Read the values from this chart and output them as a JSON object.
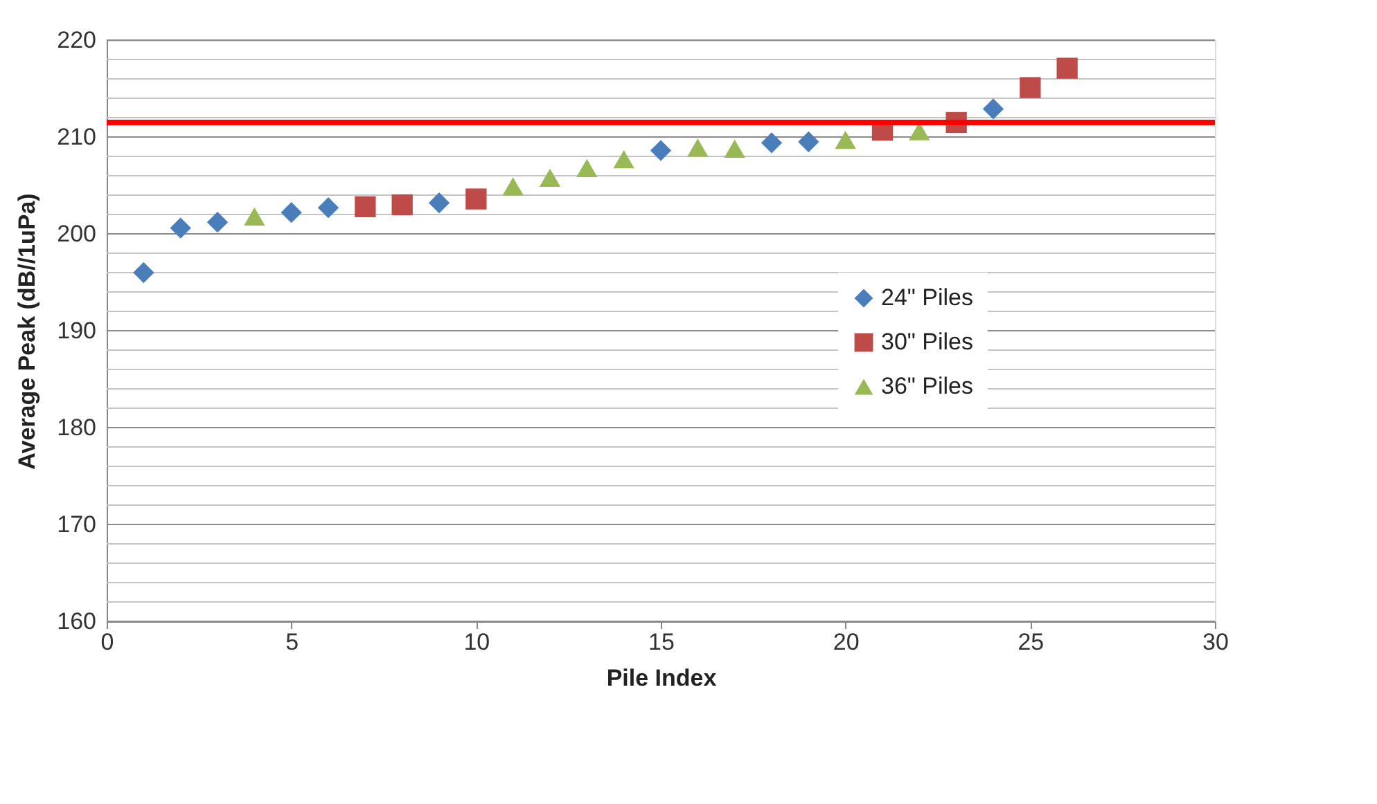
{
  "chart_data": {
    "type": "scatter",
    "xlabel": "Pile Index",
    "ylabel": "Average Peak (dB//1uPa)",
    "xlim": [
      0,
      30
    ],
    "xticks": [
      0,
      5,
      10,
      15,
      20,
      25,
      30
    ],
    "ylim": [
      160,
      220
    ],
    "yticks": [
      160,
      {
        "value": 162,
        "label": null
      },
      {
        "value": 164,
        "label": null
      },
      {
        "value": 166,
        "label": null
      },
      {
        "value": 168,
        "label": null
      },
      170,
      {
        "value": 172,
        "label": null
      },
      {
        "value": 174,
        "label": null
      },
      {
        "value": 176,
        "label": null
      },
      {
        "value": 178,
        "label": null
      },
      180,
      {
        "value": 182,
        "label": null
      },
      {
        "value": 184,
        "label": null
      },
      {
        "value": 186,
        "label": null
      },
      {
        "value": 188,
        "label": null
      },
      190,
      {
        "value": 192,
        "label": null
      },
      {
        "value": 194,
        "label": null
      },
      {
        "value": 196,
        "label": null
      },
      {
        "value": 198,
        "label": null
      },
      200,
      {
        "value": 202,
        "label": null
      },
      {
        "value": 204,
        "label": null
      },
      {
        "value": 206,
        "label": null
      },
      {
        "value": 208,
        "label": null
      },
      210,
      {
        "value": 212,
        "label": null
      },
      {
        "value": 214,
        "label": null
      },
      {
        "value": 216,
        "label": null
      },
      {
        "value": 218,
        "label": null
      },
      220
    ],
    "grid": "y",
    "legend": "right",
    "series": [
      {
        "name": "24\" Piles",
        "color": "#4a7ebb",
        "marker": "diamond",
        "x": [
          1,
          2,
          3,
          5,
          6,
          9,
          15,
          18,
          19,
          24
        ],
        "values": [
          196.0,
          200.6,
          201.2,
          202.2,
          202.7,
          203.2,
          208.6,
          209.4,
          209.5,
          212.9
        ]
      },
      {
        "name": "30\" Piles",
        "color": "#be4b48",
        "marker": "square",
        "x": [
          7,
          8,
          10,
          21,
          23,
          25,
          26
        ],
        "values": [
          202.8,
          203.0,
          203.6,
          210.7,
          211.5,
          215.1,
          217.1
        ]
      },
      {
        "name": "36\" Piles",
        "color": "#98b954",
        "marker": "triangle",
        "x": [
          4,
          11,
          12,
          13,
          14,
          16,
          17,
          20,
          22
        ],
        "values": [
          201.8,
          204.9,
          205.8,
          206.8,
          207.7,
          208.9,
          208.8,
          209.7,
          210.6
        ]
      }
    ],
    "ref_lines": [
      {
        "axis": "y",
        "value": 211.5,
        "color": "#ff0000",
        "line_style": "solid"
      }
    ]
  }
}
